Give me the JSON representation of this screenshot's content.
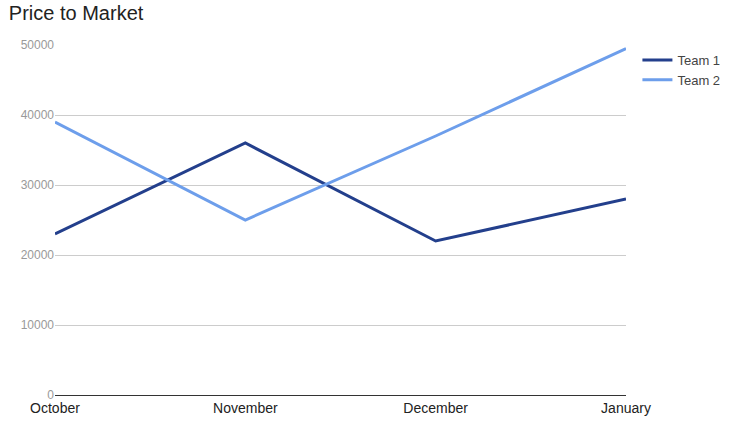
{
  "chart_data": {
    "type": "line",
    "title": "Price to Market",
    "categories": [
      "October",
      "November",
      "December",
      "January"
    ],
    "series": [
      {
        "name": "Team 1",
        "color": "#233f8c",
        "values": [
          23000,
          36000,
          22000,
          28000
        ]
      },
      {
        "name": "Team 2",
        "color": "#6d9eeb",
        "values": [
          39000,
          25000,
          37000,
          49500
        ]
      }
    ],
    "ylim": [
      0,
      50000
    ],
    "yticks": [
      0,
      10000,
      20000,
      30000,
      40000,
      50000
    ],
    "grid": true,
    "legend": "top-right"
  }
}
